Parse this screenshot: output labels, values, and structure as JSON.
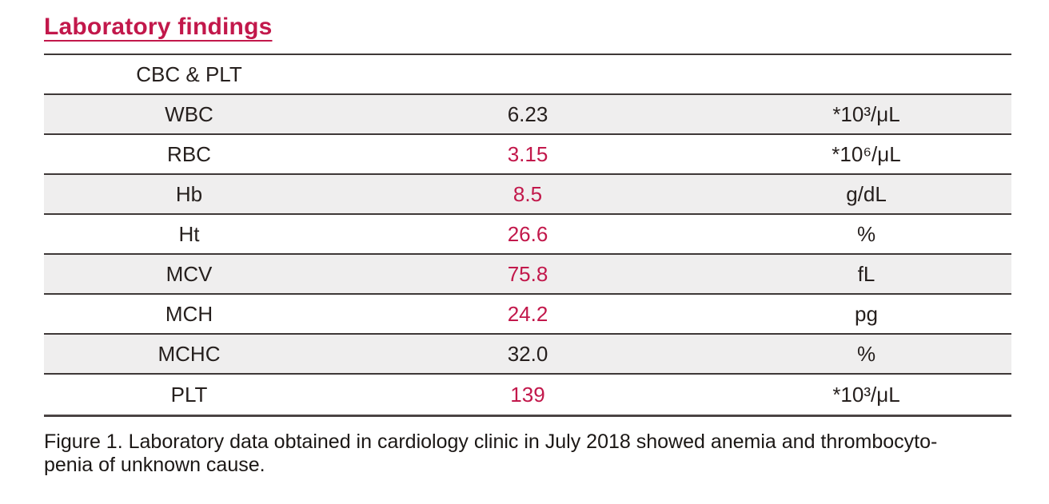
{
  "title": "Laboratory findings",
  "colors": {
    "accent": "#C2184B",
    "row_shade": "#EFEEEE",
    "rule": "#3E3837",
    "text": "#26201E"
  },
  "table": {
    "header": "CBC & PLT",
    "columns": [
      "test",
      "value",
      "unit"
    ],
    "rows": [
      {
        "label": "WBC",
        "value": "6.23",
        "unit": "*10³/μL",
        "abnormal": false
      },
      {
        "label": "RBC",
        "value": "3.15",
        "unit": "*10⁶/μL",
        "abnormal": true
      },
      {
        "label": "Hb",
        "value": "8.5",
        "unit": "g/dL",
        "abnormal": true
      },
      {
        "label": "Ht",
        "value": "26.6",
        "unit": "%",
        "abnormal": true
      },
      {
        "label": "MCV",
        "value": "75.8",
        "unit": "fL",
        "abnormal": true
      },
      {
        "label": "MCH",
        "value": "24.2",
        "unit": "pg",
        "abnormal": true
      },
      {
        "label": "MCHC",
        "value": "32.0",
        "unit": "%",
        "abnormal": false
      },
      {
        "label": "PLT",
        "value": "139",
        "unit": "*10³/μL",
        "abnormal": true
      }
    ]
  },
  "caption": {
    "lines": [
      "Figure 1. Laboratory data obtained in cardiology clinic in July 2018 showed anemia and thrombocyto-",
      "penia of unknown cause."
    ]
  }
}
